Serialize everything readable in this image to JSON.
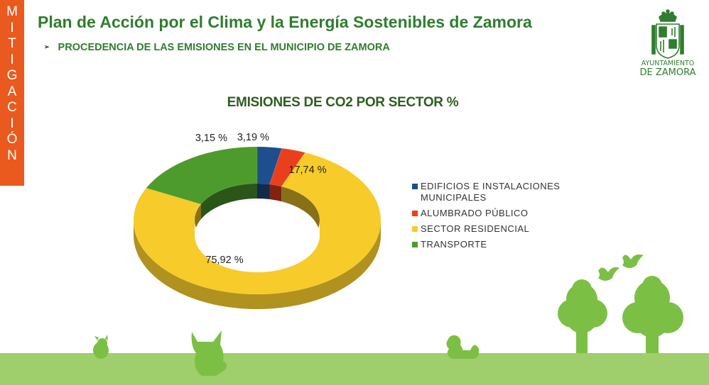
{
  "side_tab": {
    "letters": [
      "M",
      "I",
      "T",
      "I",
      "G",
      "A",
      "C",
      "I",
      "Ó",
      "N"
    ],
    "color": "#ea5a1e"
  },
  "header": {
    "title": "Plan de Acción por el Clima y la Energía Sostenibles de Zamora",
    "subtitle_bullet": "➢",
    "subtitle": "PROCEDENCIA DE LAS EMISIONES EN EL MUNICIPIO DE ZAMORA"
  },
  "logo": {
    "line1": "AYUNTAMIENTO",
    "line2": "DE ZAMORA",
    "icon": "coat-of-arms-icon"
  },
  "chart_data": {
    "type": "pie",
    "variant": "donut-3d",
    "title": "EMISIONES DE CO2 POR SECTOR %",
    "series": [
      {
        "name": "EDIFICIOS E INSTALACIONES MUNICIPALES",
        "value": 3.19,
        "label": "3,19 %",
        "color": "#1f4e8c"
      },
      {
        "name": "ALUMBRADO PÚBLICO",
        "value": 3.15,
        "label": "3,15 %",
        "color": "#e8401c"
      },
      {
        "name": "SECTOR RESIDENCIAL",
        "value": 75.92,
        "label": "75,92 %",
        "color": "#f6cb2a"
      },
      {
        "name": "TRANSPORTE",
        "value": 17.74,
        "label": "17,74 %",
        "color": "#4e9b2d"
      }
    ],
    "legend_position": "right"
  },
  "decor": {
    "ground_color": "#9fce6c",
    "tree_color": "#7cbf45",
    "animal_color": "#7cbf45"
  }
}
